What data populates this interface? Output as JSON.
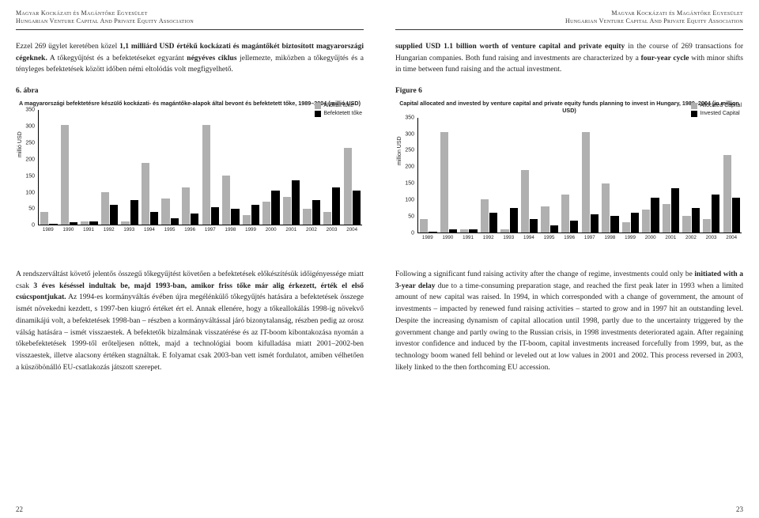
{
  "header_hu_line1": "Magyar Kockázati és Magántőke Egyesület",
  "header_hu_line2": "Hungarian Venture Capital And Private Equity Association",
  "header_en_line1": "Magyar Kockázati és Magántőke Egyesület",
  "header_en_line2": "Hungarian Venture Capital And Private Equity Association",
  "left_para1_a": "Ezzel 269 ügylet keretében közel ",
  "left_para1_b": "1,1 milliárd USD értékű kockázati és magántőkét biztosított magyarországi cégeknek.",
  "left_para1_c": " A tőkegyűjtést és a befektetéseket egyaránt ",
  "left_para1_d": "négyéves ciklus",
  "left_para1_e": " jellemezte, miközben a tőkegyűjtés és a tényleges befektetések között időben némi eltolódás volt megfigyelhető.",
  "right_para1_a": "supplied USD 1.1 billion worth of venture capital and private equity",
  "right_para1_b": " in the course of 269 transactions for Hungarian companies. Both fund raising and investments are characterized by a ",
  "right_para1_c": "four-year cycle",
  "right_para1_d": " with minor shifts in time between fund raising and the actual investment.",
  "fig_label_hu": "6. ábra",
  "fig_label_en": "Figure 6",
  "chart_hu": {
    "title": "A magyarországi befektetésre készülő kockázati- és magántőke-alapok által bevont és befektetett tőke, 1989–2004 (millió USD)",
    "legend1": "Allokált tőke",
    "legend2": "Befektetett tőke",
    "ylabel": "millió USD",
    "ymax": 350,
    "ystep": 50,
    "color1": "#b0b0b0",
    "color2": "#000000",
    "years": [
      "1989",
      "1990",
      "1991",
      "1992",
      "1993",
      "1994",
      "1995",
      "1996",
      "1997",
      "1998",
      "1999",
      "2000",
      "2001",
      "2002",
      "2003",
      "2004"
    ],
    "allocated": [
      40,
      305,
      10,
      100,
      10,
      190,
      80,
      115,
      305,
      150,
      30,
      70,
      85,
      50,
      40,
      235
    ],
    "invested": [
      2,
      8,
      10,
      60,
      75,
      40,
      20,
      35,
      55,
      50,
      60,
      105,
      135,
      75,
      115,
      105
    ]
  },
  "chart_en": {
    "title": "Capital allocated and invested by venture capital and private equity funds planning to invest in Hungary, 1989–2004 (in million USD)",
    "legend1": "Allocated Capital",
    "legend2": "Invested Capital",
    "ylabel": "million USD",
    "ymax": 350,
    "ystep": 50,
    "color1": "#b0b0b0",
    "color2": "#000000",
    "years": [
      "1989",
      "1990",
      "1991",
      "1992",
      "1993",
      "1994",
      "1995",
      "1996",
      "1997",
      "1998",
      "1999",
      "2000",
      "2001",
      "2002",
      "2003",
      "2004"
    ],
    "allocated": [
      40,
      305,
      10,
      100,
      10,
      190,
      80,
      115,
      305,
      150,
      30,
      70,
      85,
      50,
      40,
      235
    ],
    "invested": [
      2,
      8,
      10,
      60,
      75,
      40,
      20,
      35,
      55,
      50,
      60,
      105,
      135,
      75,
      115,
      105
    ]
  },
  "left_para2": "A rendszerváltást követő jelentős összegű tőkegyűjtést követően a befektetések előkészítésük időigényessége miatt csak ",
  "left_para2_b": "3 éves késéssel indultak be, majd 1993-ban, amikor friss tőke már alig érkezett, érték el első csúcspontjukat.",
  "left_para2_c": " Az 1994-es kormányváltás évében újra megélénkülő tőkegyűjtés hatására a befektetések összege ismét növekedni kezdett, s 1997-ben kiugró értéket ért el. Annak ellenére, hogy a tőkeallokálás 1998-ig növekvő dinamikájú volt, a befektetések 1998-ban – részben a kormányváltással járó bizonytalanság, részben pedig az orosz válság hatására – ismét visszaestek. A befektetők bizalmának visszatérése és az IT-boom kibontakozása nyomán a tőkebefektetések 1999-től erőteljesen nőttek, majd a technológiai boom kifulladása miatt 2001–2002-ben visszaestek, illetve alacsony értéken stagnáltak. E folyamat csak 2003-ban vett ismét fordulatot, amiben vélhetően a küszöbönálló EU-csatlakozás játszott szerepet.",
  "right_para2_a": "Following a significant fund raising activity after the change of regime, investments could only be ",
  "right_para2_b": "initiated with a 3-year delay",
  "right_para2_c": " due to a time-consuming preparation stage, and reached the first peak later in 1993 when a limited amount of new capital was raised. In 1994, in which corresponded with a change of government, the amount of investments – impacted by renewed fund raising activities – started to grow and in 1997 hit an outstanding level. Despite the increasing dynamism of capital allocation until 1998, partly due to the uncertainty triggered by the government change and partly owing to the Russian crisis, in 1998 investments deteriorated again. After regaining investor confidence and induced by the IT-boom, capital investments increased forcefully from 1999, but, as the technology boom waned fell behind or leveled out at low values in 2001 and 2002. This process reversed in 2003, likely linked to the then forthcoming EU accession.",
  "page_left": "22",
  "page_right": "23"
}
